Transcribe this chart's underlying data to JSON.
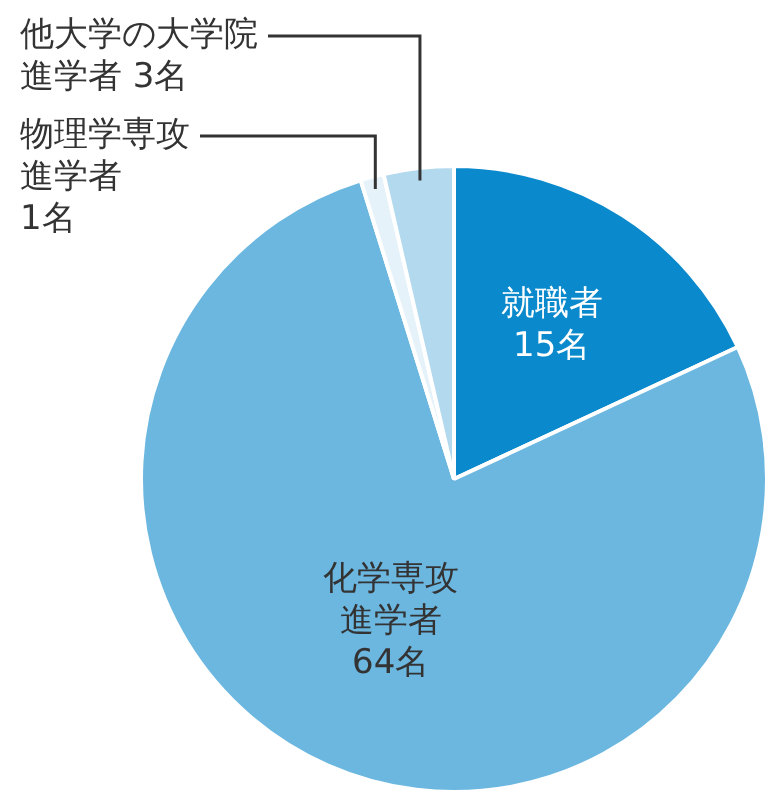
{
  "chart_data": {
    "type": "pie",
    "categories": [
      "就職者",
      "化学専攻進学者",
      "物理学専攻進学者",
      "他大学の大学院進学者"
    ],
    "values": [
      15,
      64,
      1,
      3
    ],
    "value_labels": [
      "15名",
      "64名",
      "1名",
      "3名"
    ],
    "colors": [
      "#0a89cc",
      "#6cb7e0",
      "#e6f2fa",
      "#b3d9ef"
    ],
    "legend": false
  }
}
